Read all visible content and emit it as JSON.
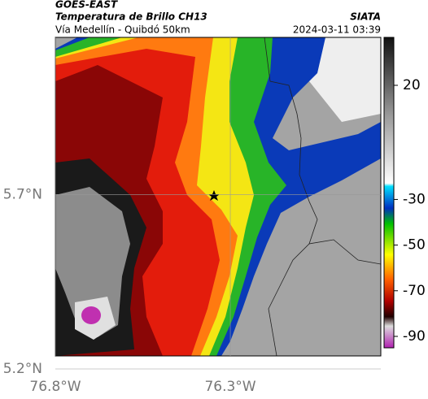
{
  "header": {
    "source": "GOES-EAST",
    "title": "Temperatura de Brillo CH13",
    "subtitle": "Vía Medellín - Quibdó 50km",
    "brand": "SIATA",
    "timestamp": "2024-03-11 03:39"
  },
  "map": {
    "xlim": [
      -76.8,
      -75.87
    ],
    "ylim": [
      5.2,
      6.15
    ],
    "xticks": [
      {
        "value": -76.8,
        "label": "76.8°W"
      },
      {
        "value": -76.3,
        "label": "76.3°W"
      }
    ],
    "yticks": [
      {
        "value": 5.2,
        "label": "5.2°N"
      },
      {
        "value": 5.7,
        "label": "5.7°N"
      }
    ]
  },
  "colorbar": {
    "lim": [
      -95,
      41
    ],
    "ticks": [
      20,
      -30,
      -50,
      -70,
      -90
    ]
  }
}
